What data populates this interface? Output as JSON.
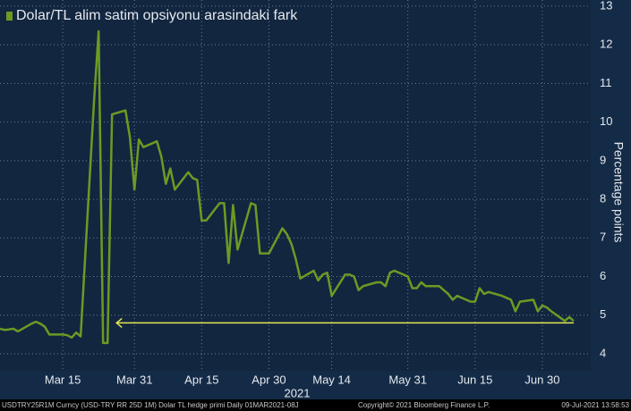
{
  "chart_data": {
    "type": "line",
    "series": [
      {
        "name": "Dolar/TL alim satim opsiyonu arasindaki fark",
        "color": "#6b9b23",
        "values": [
          4.65,
          4.62,
          4.63,
          4.65,
          4.58,
          4.78,
          4.83,
          4.78,
          4.7,
          4.5,
          4.5,
          4.48,
          4.42,
          4.55,
          4.45,
          10.6,
          12.35,
          4.28,
          4.28,
          10.2,
          10.3,
          9.6,
          8.25,
          9.55,
          9.35,
          9.5,
          9.1,
          8.4,
          8.8,
          8.25,
          8.7,
          8.55,
          8.5,
          7.45,
          7.45,
          7.9,
          7.9,
          6.35,
          7.85,
          6.7,
          7.9,
          7.85,
          6.6,
          6.6,
          6.6,
          7.25,
          7.1,
          6.85,
          6.45,
          5.95,
          6.15,
          5.9,
          6.05,
          6.1,
          5.5,
          6.05,
          6.05,
          6.0,
          5.65,
          5.75,
          5.85,
          5.85,
          5.75,
          6.1,
          6.15,
          6.0,
          5.7,
          5.7,
          5.85,
          5.75,
          5.75,
          5.65,
          5.55,
          5.4,
          5.5,
          5.35,
          5.35,
          5.7,
          5.55,
          5.6,
          5.5,
          5.45,
          5.4,
          5.1,
          5.35,
          5.4,
          5.1,
          5.25,
          5.2,
          5.1,
          4.85,
          4.95,
          4.85
        ]
      }
    ],
    "x": [
      "2021-03-01",
      "2021-03-02",
      "2021-03-03",
      "2021-03-04",
      "2021-03-05",
      "2021-03-08",
      "2021-03-09",
      "2021-03-10",
      "2021-03-11",
      "2021-03-12",
      "2021-03-15",
      "2021-03-16",
      "2021-03-17",
      "2021-03-18",
      "2021-03-19",
      "2021-03-22",
      "2021-03-23",
      "2021-03-24",
      "2021-03-25",
      "2021-03-26",
      "2021-03-29",
      "2021-03-30",
      "2021-03-31",
      "2021-04-01",
      "2021-04-02",
      "2021-04-05",
      "2021-04-06",
      "2021-04-07",
      "2021-04-08",
      "2021-04-09",
      "2021-04-12",
      "2021-04-13",
      "2021-04-14",
      "2021-04-15",
      "2021-04-16",
      "2021-04-19",
      "2021-04-20",
      "2021-04-21",
      "2021-04-22",
      "2021-04-23",
      "2021-04-26",
      "2021-04-27",
      "2021-04-28",
      "2021-04-29",
      "2021-04-30",
      "2021-05-03",
      "2021-05-04",
      "2021-05-05",
      "2021-05-06",
      "2021-05-07",
      "2021-05-10",
      "2021-05-11",
      "2021-05-12",
      "2021-05-13",
      "2021-05-14",
      "2021-05-17",
      "2021-05-18",
      "2021-05-19",
      "2021-05-20",
      "2021-05-21",
      "2021-05-24",
      "2021-05-25",
      "2021-05-26",
      "2021-05-27",
      "2021-05-28",
      "2021-05-31",
      "2021-06-01",
      "2021-06-02",
      "2021-06-03",
      "2021-06-04",
      "2021-06-07",
      "2021-06-08",
      "2021-06-09",
      "2021-06-10",
      "2021-06-11",
      "2021-06-14",
      "2021-06-15",
      "2021-06-16",
      "2021-06-17",
      "2021-06-18",
      "2021-06-21",
      "2021-06-22",
      "2021-06-23",
      "2021-06-24",
      "2021-06-25",
      "2021-06-28",
      "2021-06-29",
      "2021-06-30",
      "2021-07-01",
      "2021-07-02",
      "2021-07-05",
      "2021-07-06",
      "2021-07-07"
    ],
    "xlim": [
      "2021-03-01",
      "2021-07-10"
    ],
    "xticks": [
      {
        "value": "2021-03-15",
        "label": "Mar 15"
      },
      {
        "value": "2021-03-31",
        "label": "Mar 31"
      },
      {
        "value": "2021-04-15",
        "label": "Apr 15"
      },
      {
        "value": "2021-04-30",
        "label": "Apr 30"
      },
      {
        "value": "2021-05-14",
        "label": "May 14"
      },
      {
        "value": "2021-05-31",
        "label": "May 31"
      },
      {
        "value": "2021-06-15",
        "label": "Jun 15"
      },
      {
        "value": "2021-06-30",
        "label": "Jun 30"
      }
    ],
    "x_year_label": "2021",
    "ylim": [
      3.56,
      13.16
    ],
    "yticks": [
      4,
      5,
      6,
      7,
      8,
      9,
      10,
      11,
      12,
      13
    ],
    "y_label": "Percentage points",
    "y_axis_side": "right",
    "grid": true,
    "legend": "top-left",
    "arrow": {
      "y": 4.8,
      "x": [
        "2021-07-07",
        "2021-03-27"
      ],
      "color": "#e6e650"
    },
    "footer": {
      "source": "USDTRY25R1M Curncy (USD-TRY RR 25D 1M) Dolar TL hedge primi  Daily 01MAR2021-08J",
      "copyright": "Copyright© 2021 Bloomberg Finance L.P.",
      "timestamp": "09-Jul-2021 13:58:53"
    }
  }
}
